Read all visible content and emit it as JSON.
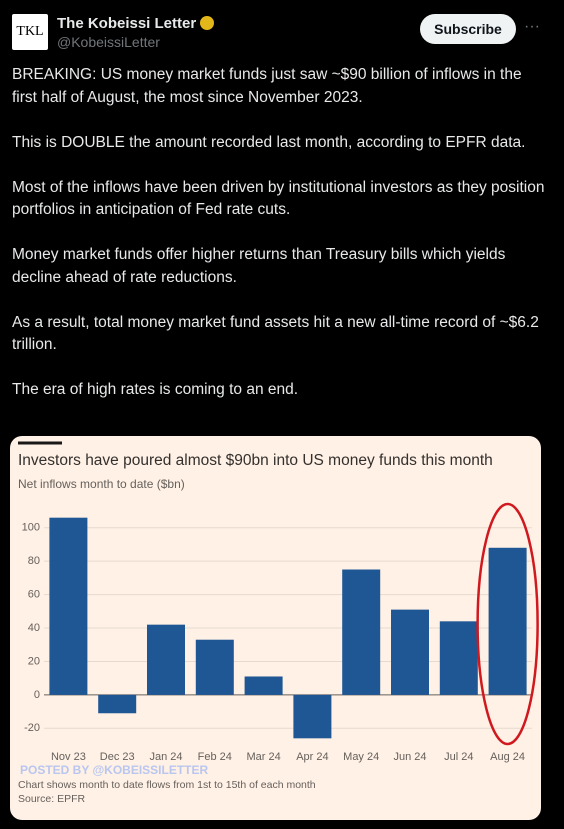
{
  "tweet": {
    "logo": "TKL",
    "name": "The Kobeissi Letter",
    "handle": "@KobeissiLetter",
    "subscribe": "Subscribe",
    "paragraphs": [
      "BREAKING: US money market funds just saw ~$90 billion of inflows in the first half of August, the most since November 2023.",
      "This is DOUBLE the amount recorded last month, according to EPFR data.",
      "Most of the inflows have been driven by institutional investors as they position portfolios in anticipation of Fed rate cuts.",
      "Money market funds offer higher returns than Treasury bills which yields decline ahead of rate reductions.",
      "As a result, total money market fund assets hit a new all-time record of ~$6.2 trillion.",
      "The era of high rates is coming to an end."
    ]
  },
  "chart_data": {
    "type": "bar",
    "title": "Investors have poured almost $90bn into US money funds this month",
    "subtitle": "Net inflows month to date ($bn)",
    "categories": [
      "Nov 23",
      "Dec 23",
      "Jan 24",
      "Feb 24",
      "Mar 24",
      "Apr 24",
      "May 24",
      "Jun 24",
      "Jul 24",
      "Aug 24"
    ],
    "values": [
      106,
      -11,
      42,
      33,
      11,
      -26,
      75,
      51,
      44,
      88
    ],
    "color": "#1f5795",
    "ylim": [
      -27,
      110
    ],
    "yticks": [
      -20,
      0,
      20,
      40,
      60,
      80,
      100
    ],
    "grid": true,
    "watermark": "POSTED BY @KOBEISSILETTER",
    "note": "Chart shows month to date flows from 1st to 15th of each month",
    "source": "Source: EPFR"
  }
}
